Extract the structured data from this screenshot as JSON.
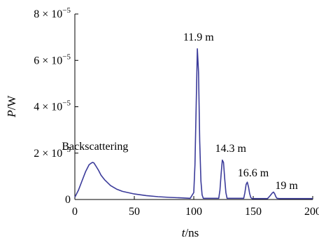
{
  "chart_data": {
    "type": "line",
    "xlabel_var": "t",
    "xlabel_unit": "/ns",
    "ylabel_var": "P",
    "ylabel_unit": "/W",
    "xlim": [
      0,
      200
    ],
    "ylim": [
      0,
      8e-05
    ],
    "x_ticks": [
      0,
      50,
      100,
      150,
      200
    ],
    "x_tick_labels": [
      "0",
      "50",
      "100",
      "150",
      "200"
    ],
    "y_ticks": [
      0,
      2e-05,
      4e-05,
      6e-05,
      8e-05
    ],
    "y_tick_mantissa": [
      "0",
      "2",
      "4",
      "6",
      "8"
    ],
    "y_tick_base": "× 10",
    "y_tick_exp": "−5",
    "grid": false,
    "line_color": "#3b3b9a",
    "series": [
      {
        "x": [
          0,
          3,
          6,
          9,
          12,
          14,
          15,
          16,
          17,
          18,
          20,
          22,
          25,
          30,
          35,
          40,
          50,
          60,
          70,
          80,
          90,
          97,
          100,
          101,
          102,
          103,
          104,
          105,
          106,
          107,
          108,
          115,
          121,
          122,
          123,
          124,
          125,
          126,
          127,
          128,
          135,
          142,
          143,
          144,
          145,
          146,
          147,
          148,
          149,
          155,
          162,
          164,
          166,
          167,
          168,
          169,
          170,
          172,
          175,
          180,
          190,
          200
        ],
        "y": [
          1e-06,
          4e-06,
          8e-06,
          1.2e-05,
          1.5e-05,
          1.58e-05,
          1.6e-05,
          1.58e-05,
          1.5e-05,
          1.42e-05,
          1.25e-05,
          1.05e-05,
          8.5e-06,
          6e-06,
          4.5e-06,
          3.5e-06,
          2.4e-06,
          1.7e-06,
          1.2e-06,
          9e-07,
          7e-07,
          5e-07,
          3e-06,
          1.5e-05,
          4e-05,
          6.5e-05,
          5.5e-05,
          2.5e-05,
          8e-06,
          2e-06,
          5e-07,
          5e-07,
          5e-07,
          4e-06,
          1.1e-05,
          1.7e-05,
          1.6e-05,
          9e-06,
          3e-06,
          5e-07,
          5e-07,
          5e-07,
          3e-06,
          6.5e-06,
          7.5e-06,
          5.5e-06,
          2.5e-06,
          8e-07,
          4e-07,
          4e-07,
          4e-07,
          1.5e-06,
          2.8e-06,
          3.2e-06,
          2.5e-06,
          1.2e-06,
          5e-07,
          4e-07,
          4e-07,
          4e-07,
          4e-07,
          4e-07
        ]
      }
    ],
    "annotations": [
      {
        "text": "Backscattering",
        "x": 17,
        "y": 2.15e-05
      },
      {
        "text": "11.9 m",
        "x": 104,
        "y": 6.85e-05
      },
      {
        "text": "14.3 m",
        "x": 131,
        "y": 2.05e-05
      },
      {
        "text": "16.6 m",
        "x": 150,
        "y": 1e-05
      },
      {
        "text": "19 m",
        "x": 178,
        "y": 4.5e-06
      }
    ]
  }
}
